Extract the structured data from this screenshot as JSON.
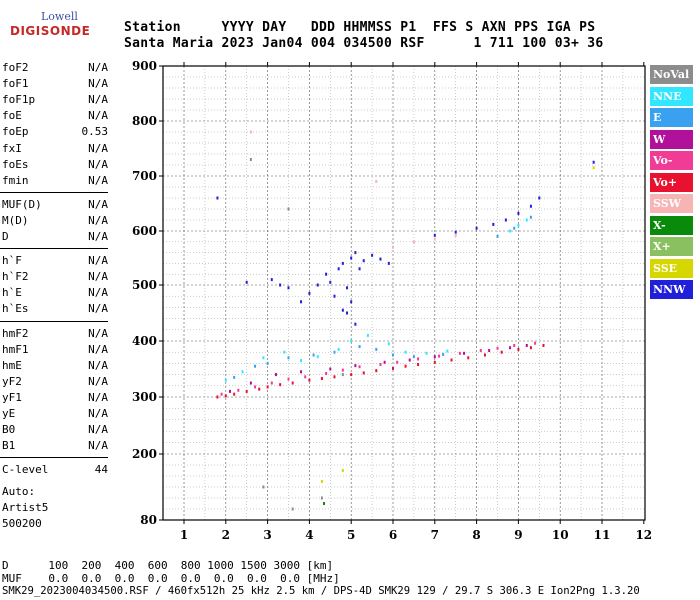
{
  "logo": {
    "line1": "Lowell",
    "line2": "DIGISONDE"
  },
  "header": {
    "line1": "Station     YYYY DAY   DDD HHMMSS P1  FFS S AXN PPS IGA PS",
    "line2": "Santa Maria 2023 Jan04 004 034500 RSF      1 711 100 03+ 36"
  },
  "params": [
    [
      {
        "name": "foF2",
        "value": "N/A"
      },
      {
        "name": "foF1",
        "value": "N/A"
      },
      {
        "name": "foF1p",
        "value": "N/A"
      },
      {
        "name": "foE",
        "value": "N/A"
      },
      {
        "name": "foEp",
        "value": "0.53"
      },
      {
        "name": "fxI",
        "value": "N/A"
      },
      {
        "name": "foEs",
        "value": "N/A"
      },
      {
        "name": "fmin",
        "value": "N/A"
      }
    ],
    [
      {
        "name": "MUF(D)",
        "value": "N/A"
      },
      {
        "name": "M(D)",
        "value": "N/A"
      },
      {
        "name": "D",
        "value": "N/A"
      }
    ],
    [
      {
        "name": "h`F",
        "value": "N/A"
      },
      {
        "name": "h`F2",
        "value": "N/A"
      },
      {
        "name": "h`E",
        "value": "N/A"
      },
      {
        "name": "h`Es",
        "value": "N/A"
      }
    ],
    [
      {
        "name": "hmF2",
        "value": "N/A"
      },
      {
        "name": "hmF1",
        "value": "N/A"
      },
      {
        "name": "hmE",
        "value": "N/A"
      },
      {
        "name": "yF2",
        "value": "N/A"
      },
      {
        "name": "yF1",
        "value": "N/A"
      },
      {
        "name": "yE",
        "value": "N/A"
      },
      {
        "name": "B0",
        "value": "N/A"
      },
      {
        "name": "B1",
        "value": "N/A"
      }
    ],
    [
      {
        "name": "C-level",
        "value": "44"
      }
    ]
  ],
  "auto": {
    "label": "Auto:",
    "artist": "Artist5",
    "code": "500200"
  },
  "legend": [
    {
      "label": "NoVal",
      "color": "#8c8c8c"
    },
    {
      "label": "NNE",
      "color": "#33e6ff"
    },
    {
      "label": "E",
      "color": "#3aa0f0"
    },
    {
      "label": "W",
      "color": "#b0109a"
    },
    {
      "label": "Vo-",
      "color": "#f03c94"
    },
    {
      "label": "Vo+",
      "color": "#e81230"
    },
    {
      "label": "SSW",
      "color": "#f7b4b4"
    },
    {
      "label": "X-",
      "color": "#0a8a0a"
    },
    {
      "label": "X+",
      "color": "#8ac060"
    },
    {
      "label": "SSE",
      "color": "#d6d600"
    },
    {
      "label": "NNW",
      "color": "#2020d8"
    }
  ],
  "footer": {
    "d_row": "D      100  200  400  600  800 1000 1500 3000 [km]",
    "muf_row": "MUF    0.0  0.0  0.0  0.0  0.0  0.0  0.0  0.0 [MHz]",
    "status": "SMK29_2023004034500.RSF / 460fx512h 25 kHz 2.5 km / DPS-4D SMK29 129 / 29.7 S 306.3 E Ion2Png 1.3.20"
  },
  "chart_data": {
    "type": "scatter",
    "title": "",
    "xlabel": "",
    "ylabel": "",
    "xlim": [
      0.5,
      12
    ],
    "ylim": [
      80,
      900
    ],
    "x_ticks": [
      1,
      2,
      3,
      4,
      5,
      6,
      7,
      8,
      9,
      10,
      11,
      12
    ],
    "y_ticks": [
      80,
      200,
      300,
      400,
      500,
      600,
      700,
      800,
      900
    ],
    "grid": true,
    "legend_position": "right",
    "series": [
      {
        "name": "Vo+",
        "color": "#e81230",
        "points": [
          [
            1.8,
            300
          ],
          [
            2.0,
            302
          ],
          [
            2.2,
            305
          ],
          [
            2.5,
            310
          ],
          [
            2.8,
            314
          ],
          [
            3.0,
            318
          ],
          [
            3.3,
            322
          ],
          [
            3.6,
            325
          ],
          [
            4.0,
            330
          ],
          [
            4.3,
            333
          ],
          [
            4.6,
            336
          ],
          [
            5.0,
            340
          ],
          [
            5.3,
            343
          ],
          [
            5.6,
            347
          ],
          [
            6.0,
            351
          ],
          [
            6.3,
            355
          ],
          [
            6.6,
            358
          ],
          [
            7.0,
            362
          ],
          [
            7.4,
            366
          ],
          [
            7.8,
            370
          ],
          [
            8.2,
            375
          ],
          [
            8.6,
            380
          ],
          [
            9.0,
            385
          ],
          [
            9.3,
            388
          ],
          [
            9.6,
            392
          ]
        ]
      },
      {
        "name": "Vo-",
        "color": "#f03c94",
        "points": [
          [
            1.9,
            305
          ],
          [
            2.3,
            312
          ],
          [
            2.7,
            318
          ],
          [
            3.1,
            325
          ],
          [
            3.5,
            332
          ],
          [
            3.9,
            336
          ],
          [
            4.4,
            342
          ],
          [
            4.8,
            348
          ],
          [
            5.2,
            354
          ],
          [
            5.7,
            358
          ],
          [
            6.1,
            362
          ],
          [
            6.6,
            368
          ],
          [
            7.1,
            373
          ],
          [
            7.6,
            378
          ],
          [
            8.1,
            383
          ],
          [
            8.5,
            387
          ],
          [
            8.9,
            392
          ],
          [
            9.4,
            396
          ]
        ]
      },
      {
        "name": "W",
        "color": "#b0109a",
        "points": [
          [
            2.1,
            310
          ],
          [
            2.6,
            325
          ],
          [
            3.2,
            340
          ],
          [
            3.8,
            345
          ],
          [
            4.5,
            350
          ],
          [
            5.1,
            356
          ],
          [
            5.8,
            362
          ],
          [
            6.4,
            366
          ],
          [
            7.0,
            372
          ],
          [
            7.7,
            378
          ],
          [
            8.3,
            383
          ],
          [
            8.8,
            388
          ],
          [
            9.2,
            392
          ]
        ]
      },
      {
        "name": "NNE",
        "color": "#33e6ff",
        "points": [
          [
            2.0,
            330
          ],
          [
            2.4,
            345
          ],
          [
            2.9,
            370
          ],
          [
            3.4,
            380
          ],
          [
            3.8,
            365
          ],
          [
            4.2,
            372
          ],
          [
            4.7,
            385
          ],
          [
            5.0,
            400
          ],
          [
            5.4,
            410
          ],
          [
            5.9,
            395
          ],
          [
            6.3,
            380
          ],
          [
            6.8,
            378
          ],
          [
            7.3,
            382
          ],
          [
            8.8,
            600
          ],
          [
            9.0,
            610
          ],
          [
            9.2,
            620
          ]
        ]
      },
      {
        "name": "E",
        "color": "#3aa0f0",
        "points": [
          [
            2.2,
            335
          ],
          [
            2.7,
            355
          ],
          [
            3.0,
            360
          ],
          [
            3.5,
            370
          ],
          [
            4.1,
            375
          ],
          [
            4.6,
            380
          ],
          [
            5.2,
            390
          ],
          [
            5.6,
            385
          ],
          [
            6.0,
            375
          ],
          [
            6.5,
            372
          ],
          [
            7.2,
            376
          ],
          [
            8.5,
            590
          ],
          [
            8.9,
            605
          ],
          [
            9.3,
            625
          ]
        ]
      },
      {
        "name": "NNW",
        "color": "#2020d8",
        "points": [
          [
            3.1,
            510
          ],
          [
            3.3,
            500
          ],
          [
            3.5,
            495
          ],
          [
            3.8,
            470
          ],
          [
            4.0,
            485
          ],
          [
            4.2,
            500
          ],
          [
            4.4,
            520
          ],
          [
            4.5,
            505
          ],
          [
            4.6,
            480
          ],
          [
            4.7,
            530
          ],
          [
            4.8,
            540
          ],
          [
            4.9,
            495
          ],
          [
            5.0,
            550
          ],
          [
            5.1,
            560
          ],
          [
            5.2,
            530
          ],
          [
            5.3,
            545
          ],
          [
            5.5,
            555
          ],
          [
            5.7,
            548
          ],
          [
            5.9,
            540
          ],
          [
            5.0,
            470
          ],
          [
            4.9,
            450
          ],
          [
            5.1,
            430
          ],
          [
            4.8,
            455
          ],
          [
            7.0,
            592
          ],
          [
            7.5,
            598
          ],
          [
            8.0,
            605
          ],
          [
            8.4,
            612
          ],
          [
            8.7,
            620
          ],
          [
            9.0,
            632
          ],
          [
            9.3,
            645
          ],
          [
            9.5,
            660
          ],
          [
            2.5,
            505
          ],
          [
            1.8,
            660
          ],
          [
            10.8,
            725
          ]
        ]
      },
      {
        "name": "SSW",
        "color": "#f7b4b4",
        "points": [
          [
            6.0,
            570
          ],
          [
            6.5,
            580
          ],
          [
            7.0,
            585
          ],
          [
            7.5,
            592
          ],
          [
            2.6,
            780
          ],
          [
            5.6,
            690
          ]
        ]
      },
      {
        "name": "NoVal",
        "color": "#8c8c8c",
        "points": [
          [
            2.6,
            730
          ],
          [
            3.5,
            640
          ],
          [
            3.6,
            100
          ],
          [
            4.3,
            120
          ],
          [
            2.9,
            140
          ],
          [
            4.8,
            340
          ]
        ]
      },
      {
        "name": "X-",
        "color": "#0a8a0a",
        "points": [
          [
            4.35,
            110
          ]
        ]
      },
      {
        "name": "SSE",
        "color": "#d6d600",
        "points": [
          [
            4.3,
            150
          ],
          [
            4.8,
            170
          ],
          [
            10.8,
            715
          ]
        ]
      }
    ]
  }
}
